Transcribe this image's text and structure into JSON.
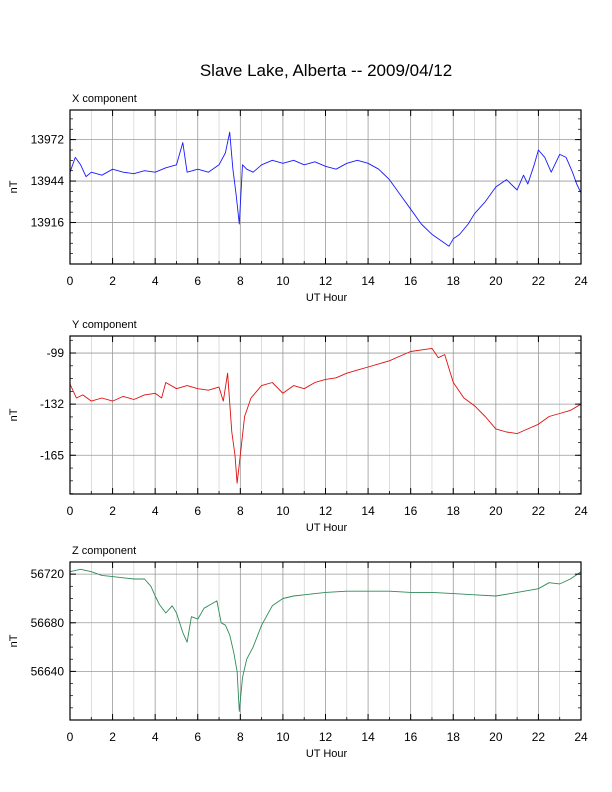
{
  "title": "Slave Lake, Alberta -- 2009/04/12",
  "chart_data": [
    {
      "type": "line",
      "panel_label": "X component",
      "xlabel": "UT Hour",
      "ylabel": "nT",
      "xlim": [
        0,
        24
      ],
      "ylim": [
        13888,
        13992
      ],
      "xticks": [
        0,
        2,
        4,
        6,
        8,
        10,
        12,
        14,
        16,
        18,
        20,
        22,
        24
      ],
      "yticks": [
        13916,
        13944,
        13972
      ],
      "grid": true,
      "color": "#1a1aff",
      "series": [
        {
          "x": [
            0,
            0.25,
            0.5,
            0.75,
            1,
            1.5,
            2,
            2.5,
            3,
            3.5,
            4,
            4.5,
            5,
            5.3,
            5.5,
            6,
            6.5,
            7,
            7.3,
            7.5,
            7.65,
            7.8,
            7.95,
            8.1,
            8.3,
            8.6,
            9,
            9.5,
            10,
            10.5,
            11,
            11.5,
            12,
            12.5,
            13,
            13.5,
            14,
            14.5,
            15,
            15.5,
            16,
            16.5,
            17,
            17.5,
            17.8,
            18,
            18.3,
            18.7,
            19,
            19.5,
            20,
            20.5,
            21,
            21.3,
            21.5,
            21.8,
            22,
            22.3,
            22.6,
            23,
            23.3,
            23.6,
            23.8,
            24
          ],
          "y": [
            13950,
            13960,
            13955,
            13947,
            13950,
            13948,
            13952,
            13950,
            13949,
            13951,
            13950,
            13953,
            13955,
            13970,
            13950,
            13952,
            13950,
            13955,
            13963,
            13977,
            13952,
            13935,
            13915,
            13955,
            13952,
            13950,
            13955,
            13958,
            13956,
            13958,
            13955,
            13957,
            13954,
            13952,
            13956,
            13958,
            13956,
            13952,
            13945,
            13935,
            13925,
            13915,
            13908,
            13903,
            13900,
            13905,
            13908,
            13915,
            13922,
            13930,
            13940,
            13945,
            13938,
            13948,
            13942,
            13955,
            13965,
            13960,
            13950,
            13962,
            13960,
            13950,
            13942,
            13936
          ]
        }
      ]
    },
    {
      "type": "line",
      "panel_label": "Y component",
      "xlabel": "UT Hour",
      "ylabel": "nT",
      "xlim": [
        0,
        24
      ],
      "ylim": [
        -190,
        -88
      ],
      "xticks": [
        0,
        2,
        4,
        6,
        8,
        10,
        12,
        14,
        16,
        18,
        20,
        22,
        24
      ],
      "yticks": [
        -165,
        -132,
        -99
      ],
      "grid": true,
      "color": "#e01010",
      "series": [
        {
          "x": [
            0,
            0.3,
            0.6,
            1,
            1.5,
            2,
            2.5,
            3,
            3.5,
            4,
            4.3,
            4.5,
            5,
            5.5,
            6,
            6.5,
            7,
            7.2,
            7.4,
            7.6,
            7.75,
            7.85,
            8,
            8.2,
            8.5,
            9,
            9.5,
            10,
            10.5,
            11,
            11.5,
            12,
            12.5,
            13,
            13.5,
            14,
            14.5,
            15,
            15.5,
            16,
            16.5,
            17,
            17.3,
            17.6,
            18,
            18.5,
            19,
            19.5,
            20,
            20.5,
            21,
            21.5,
            22,
            22.5,
            23,
            23.5,
            24
          ],
          "y": [
            -119,
            -128,
            -126,
            -130,
            -128,
            -130,
            -127,
            -129,
            -126,
            -125,
            -128,
            -118,
            -122,
            -120,
            -122,
            -123,
            -121,
            -130,
            -112,
            -150,
            -165,
            -183,
            -165,
            -140,
            -128,
            -120,
            -118,
            -125,
            -120,
            -122,
            -118,
            -116,
            -115,
            -112,
            -110,
            -108,
            -106,
            -104,
            -101,
            -98,
            -97,
            -96,
            -102,
            -100,
            -118,
            -128,
            -133,
            -140,
            -148,
            -150,
            -151,
            -148,
            -145,
            -140,
            -138,
            -136,
            -132
          ]
        }
      ]
    },
    {
      "type": "line",
      "panel_label": "Z component",
      "xlabel": "UT Hour",
      "ylabel": "nT",
      "xlim": [
        0,
        24
      ],
      "ylim": [
        56600,
        56730
      ],
      "xticks": [
        0,
        2,
        4,
        6,
        8,
        10,
        12,
        14,
        16,
        18,
        20,
        22,
        24
      ],
      "yticks": [
        56640,
        56680,
        56720
      ],
      "grid": true,
      "color": "#2e8b57",
      "series": [
        {
          "x": [
            0,
            0.5,
            1,
            1.5,
            2,
            2.5,
            3,
            3.5,
            3.8,
            4,
            4.2,
            4.5,
            4.8,
            5,
            5.3,
            5.5,
            5.7,
            6,
            6.3,
            6.6,
            6.9,
            7.1,
            7.3,
            7.5,
            7.7,
            7.85,
            7.95,
            8.1,
            8.3,
            8.6,
            9,
            9.5,
            10,
            10.5,
            11,
            12,
            13,
            14,
            15,
            16,
            17,
            18,
            19,
            20,
            21,
            22,
            22.5,
            23,
            23.5,
            24
          ],
          "y": [
            56722,
            56724,
            56722,
            56719,
            56718,
            56717,
            56716,
            56716,
            56710,
            56702,
            56695,
            56688,
            56694,
            56688,
            56672,
            56664,
            56685,
            56683,
            56692,
            56695,
            56698,
            56680,
            56678,
            56670,
            56655,
            56640,
            56607,
            56635,
            56650,
            56660,
            56678,
            56694,
            56700,
            56702,
            56703,
            56705,
            56706,
            56706,
            56706,
            56705,
            56705,
            56704,
            56703,
            56702,
            56705,
            56708,
            56713,
            56712,
            56716,
            56722
          ]
        }
      ]
    }
  ]
}
